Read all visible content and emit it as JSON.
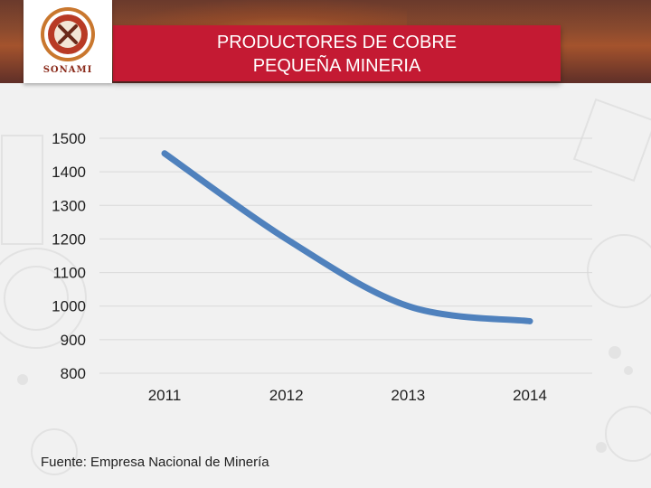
{
  "header": {
    "title_line1": "PRODUCTORES DE COBRE",
    "title_line2": "PEQUEÑA MINERIA",
    "logo_text": "SONAMI"
  },
  "colors": {
    "title_bar": "#c41a33",
    "line": "#4f81bd",
    "grid": "#d9d9d9",
    "background": "#f1f1f1"
  },
  "chart_data": {
    "type": "line",
    "categories": [
      "2011",
      "2012",
      "2013",
      "2014"
    ],
    "series": [
      {
        "values": [
          1455,
          1200,
          1000,
          955
        ]
      }
    ],
    "ylim": [
      800,
      1500
    ],
    "yticks": [
      1500,
      1400,
      1300,
      1200,
      1100,
      1000,
      900,
      800
    ],
    "smooth": true,
    "grid": true,
    "legend": "none"
  },
  "footer": {
    "source": "Fuente: Empresa Nacional de Minería"
  }
}
